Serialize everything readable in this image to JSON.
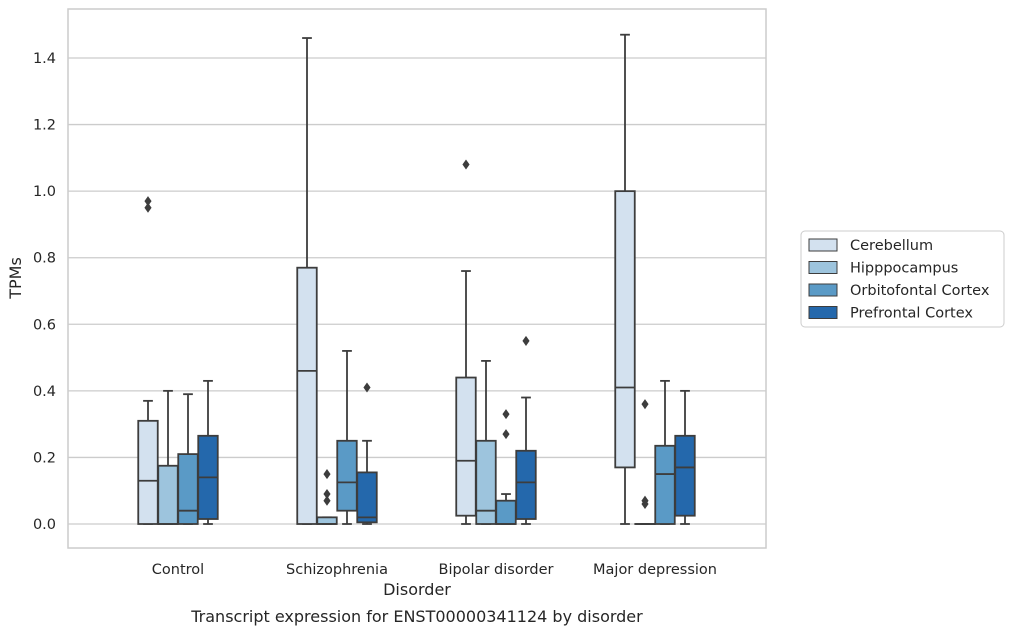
{
  "chart_data": {
    "type": "box",
    "caption": "Transcript expression for ENST00000341124 by disorder",
    "xlabel": "Disorder",
    "ylabel": "TPMs",
    "ylim": [
      -0.07,
      1.55
    ],
    "yticks": [
      0.0,
      0.2,
      0.4,
      0.6,
      0.8,
      1.0,
      1.2,
      1.4
    ],
    "ytick_labels": [
      "0.0",
      "0.2",
      "0.4",
      "0.6",
      "0.8",
      "1.0",
      "1.2",
      "1.4"
    ],
    "grid": "horizontal",
    "legend_placement": "right",
    "categories": [
      "Control",
      "Schizophrenia",
      "Bipolar disorder",
      "Major depression"
    ],
    "series": [
      {
        "name": "Cerebellum",
        "color": "#d3e1ef",
        "boxes": [
          {
            "whislo": 0.0,
            "q1": 0.0,
            "median": 0.13,
            "q3": 0.31,
            "whishi": 0.37,
            "fliers": [
              0.95,
              0.97
            ]
          },
          {
            "whislo": 0.0,
            "q1": 0.0,
            "median": 0.46,
            "q3": 0.77,
            "whishi": 1.46,
            "fliers": []
          },
          {
            "whislo": 0.0,
            "q1": 0.025,
            "median": 0.19,
            "q3": 0.44,
            "whishi": 0.76,
            "fliers": [
              1.08
            ]
          },
          {
            "whislo": 0.0,
            "q1": 0.17,
            "median": 0.41,
            "q3": 1.0,
            "whishi": 1.47,
            "fliers": []
          }
        ]
      },
      {
        "name": "Hipppocampus",
        "color": "#9dc4dd",
        "boxes": [
          {
            "whislo": 0.0,
            "q1": 0.0,
            "median": 0.0,
            "q3": 0.175,
            "whishi": 0.4,
            "fliers": []
          },
          {
            "whislo": 0.0,
            "q1": 0.0,
            "median": 0.0,
            "q3": 0.02,
            "whishi": 0.02,
            "fliers": [
              0.07,
              0.09,
              0.15
            ]
          },
          {
            "whislo": 0.0,
            "q1": 0.0,
            "median": 0.04,
            "q3": 0.25,
            "whishi": 0.49,
            "fliers": []
          },
          {
            "whislo": 0.0,
            "q1": 0.0,
            "median": 0.0,
            "q3": 0.0,
            "whishi": 0.0,
            "fliers": [
              0.06,
              0.07,
              0.36
            ]
          }
        ]
      },
      {
        "name": "Orbitofontal Cortex",
        "color": "#5a9ac6",
        "boxes": [
          {
            "whislo": 0.0,
            "q1": 0.0,
            "median": 0.04,
            "q3": 0.21,
            "whishi": 0.39,
            "fliers": []
          },
          {
            "whislo": 0.0,
            "q1": 0.04,
            "median": 0.125,
            "q3": 0.25,
            "whishi": 0.52,
            "fliers": []
          },
          {
            "whislo": 0.0,
            "q1": 0.0,
            "median": 0.0,
            "q3": 0.07,
            "whishi": 0.09,
            "fliers": [
              0.27,
              0.33
            ]
          },
          {
            "whislo": 0.0,
            "q1": 0.0,
            "median": 0.15,
            "q3": 0.235,
            "whishi": 0.43,
            "fliers": []
          }
        ]
      },
      {
        "name": "Prefrontal Cortex",
        "color": "#2468ac",
        "boxes": [
          {
            "whislo": 0.0,
            "q1": 0.015,
            "median": 0.14,
            "q3": 0.265,
            "whishi": 0.43,
            "fliers": []
          },
          {
            "whislo": 0.0,
            "q1": 0.005,
            "median": 0.02,
            "q3": 0.155,
            "whishi": 0.25,
            "fliers": [
              0.41
            ]
          },
          {
            "whislo": 0.0,
            "q1": 0.015,
            "median": 0.125,
            "q3": 0.22,
            "whishi": 0.38,
            "fliers": [
              0.55
            ]
          },
          {
            "whislo": 0.0,
            "q1": 0.025,
            "median": 0.17,
            "q3": 0.265,
            "whishi": 0.4,
            "fliers": []
          }
        ]
      }
    ]
  },
  "colors": {
    "box_edge": "#3d3d3d",
    "grid": "#cccccc",
    "frame": "#cccccc"
  }
}
